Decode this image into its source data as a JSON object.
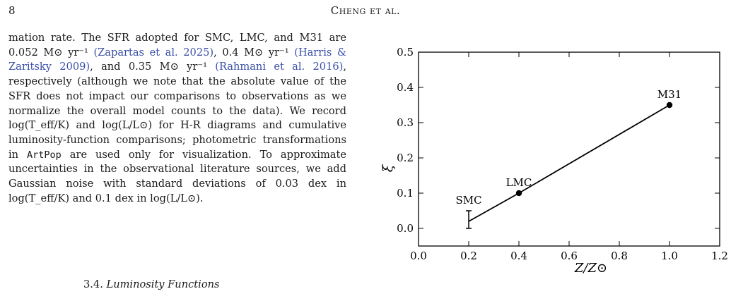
{
  "header": {
    "page_number": "8",
    "running_head": "Cheng et al."
  },
  "body_text": {
    "intro": "mation rate. The SFR adopted for SMC, LMC, and M31 are 0.052 M⊙ yr⁻¹ ",
    "cite1": "(Zapartas et al. 2025)",
    "mid1": ", 0.4 M⊙ yr⁻¹ ",
    "cite2": "(Harris & Zaritsky 2009)",
    "mid2": ", and 0.35 M⊙ yr⁻¹ ",
    "cite3": "(Rahmani et al. 2016)",
    "rest1": ", respectively (although we note that the absolute value of the SFR does not impact our comparisons to observations as we normalize the overall model counts to the data). We record log(T_eff/K) and log(L/L⊙) for H-R diagrams and cumulative luminosity-function comparisons; photometric transformations in ",
    "code": "ArtPop",
    "rest2": " are used only for visualization. To approximate uncertainties in the observational literature sources, we add Gaussian noise with standard deviations of 0.03 dex in log(T_eff/K) and 0.1 dex in log(L/L⊙)."
  },
  "section": {
    "number": "3.4.",
    "title": "Luminosity Functions"
  },
  "chart_data": {
    "type": "line",
    "xlabel": "Z/Z⊙",
    "ylabel": "ξ",
    "xlim": [
      0.0,
      1.2
    ],
    "ylim": [
      -0.05,
      0.5
    ],
    "x_ticks": [
      "0.0",
      "0.2",
      "0.4",
      "0.6",
      "0.8",
      "1.0",
      "1.2"
    ],
    "y_ticks": [
      "0.0",
      "0.1",
      "0.2",
      "0.3",
      "0.4",
      "0.5"
    ],
    "grid": false,
    "series": [
      {
        "points": [
          {
            "x": 0.2,
            "y": 0.02,
            "label": "SMC",
            "error": [
              0.0,
              0.05
            ]
          },
          {
            "x": 0.4,
            "y": 0.1,
            "label": "LMC"
          },
          {
            "x": 1.0,
            "y": 0.35,
            "label": "M31"
          }
        ],
        "color": "#000000"
      }
    ]
  }
}
